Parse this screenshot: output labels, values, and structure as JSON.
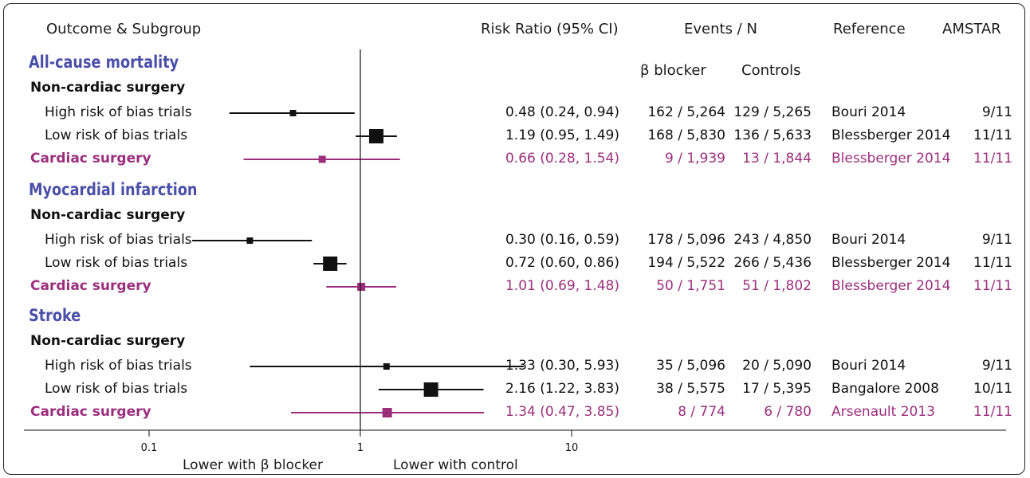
{
  "colors": {
    "outcome": "#4a4fa8",
    "cardiac": "#9b2f7c",
    "normal": "#111111"
  },
  "headers": {
    "outcome_subgroup": "Outcome & Subgroup",
    "risk_ratio": "Risk Ratio (95% CI)",
    "events_n": "Events / N",
    "reference": "Reference",
    "amstar": "AMSTAR",
    "beta_blocker": "β blocker",
    "controls": "Controls"
  },
  "axis": {
    "lower_beta": "Lower with β blocker",
    "lower_control": "Lower with control"
  },
  "chart_data": {
    "type": "forest",
    "x_scale": "log",
    "xlim": [
      0.1,
      10
    ],
    "xticks": [
      "0.1",
      "1",
      "10"
    ],
    "reference_line": 1,
    "outcomes": [
      {
        "name": "All-cause mortality",
        "nc_label": "Non-cardiac surgery",
        "rows": [
          {
            "label": "High risk of bias trials",
            "rr": 0.48,
            "lo": 0.24,
            "hi": 0.94,
            "ci_text": "0.48 (0.24, 0.94)",
            "bb": "162 / 5,264",
            "ctrl": "129 / 5,265",
            "ref": "Bouri 2014",
            "amstar": "9/11",
            "cardiac": false,
            "size": 8
          },
          {
            "label": "Low risk of bias trials",
            "rr": 1.19,
            "lo": 0.95,
            "hi": 1.49,
            "ci_text": "1.19 (0.95, 1.49)",
            "bb": "168 / 5,830",
            "ctrl": "136 / 5,633",
            "ref": "Blessberger 2014",
            "amstar": "11/11",
            "cardiac": false,
            "size": 18
          },
          {
            "label": "Cardiac surgery",
            "rr": 0.66,
            "lo": 0.28,
            "hi": 1.54,
            "ci_text": "0.66 (0.28, 1.54)",
            "bb": "9 / 1,939",
            "ctrl": "13 / 1,844",
            "ref": "Blessberger 2014",
            "amstar": "11/11",
            "cardiac": true,
            "size": 9
          }
        ]
      },
      {
        "name": "Myocardial infarction",
        "nc_label": "Non-cardiac surgery",
        "rows": [
          {
            "label": "High risk of bias trials",
            "rr": 0.3,
            "lo": 0.16,
            "hi": 0.59,
            "ci_text": "0.30 (0.16, 0.59)",
            "bb": "178 / 5,096",
            "ctrl": "243 / 4,850",
            "ref": "Bouri 2014",
            "amstar": "9/11",
            "cardiac": false,
            "size": 8
          },
          {
            "label": "Low risk of bias trials",
            "rr": 0.72,
            "lo": 0.6,
            "hi": 0.86,
            "ci_text": "0.72 (0.60, 0.86)",
            "bb": "194 / 5,522",
            "ctrl": "266 / 5,436",
            "ref": "Blessberger 2014",
            "amstar": "11/11",
            "cardiac": false,
            "size": 18
          },
          {
            "label": "Cardiac surgery",
            "rr": 1.01,
            "lo": 0.69,
            "hi": 1.48,
            "ci_text": "1.01 (0.69, 1.48)",
            "bb": "50 / 1,751",
            "ctrl": "51 / 1,802",
            "ref": "Blessberger 2014",
            "amstar": "11/11",
            "cardiac": true,
            "size": 10
          }
        ]
      },
      {
        "name": "Stroke",
        "nc_label": "Non-cardiac surgery",
        "rows": [
          {
            "label": "High risk of bias trials",
            "rr": 1.33,
            "lo": 0.3,
            "hi": 5.93,
            "ci_text": "1.33 (0.30, 5.93)",
            "bb": "35 / 5,096",
            "ctrl": "20 / 5,090",
            "ref": "Bouri 2014",
            "amstar": "9/11",
            "cardiac": false,
            "size": 8
          },
          {
            "label": "Low risk of bias trials",
            "rr": 2.16,
            "lo": 1.22,
            "hi": 3.83,
            "ci_text": "2.16 (1.22, 3.83)",
            "bb": "38 / 5,575",
            "ctrl": "17 / 5,395",
            "ref": "Bangalore 2008",
            "amstar": "10/11",
            "cardiac": false,
            "size": 18
          },
          {
            "label": "Cardiac surgery",
            "rr": 1.34,
            "lo": 0.47,
            "hi": 3.85,
            "ci_text": "1.34 (0.47, 3.85)",
            "bb": "8 / 774",
            "ctrl": "6 / 780",
            "ref": "Arsenault 2013",
            "amstar": "11/11",
            "cardiac": true,
            "size": 12
          }
        ]
      }
    ]
  }
}
